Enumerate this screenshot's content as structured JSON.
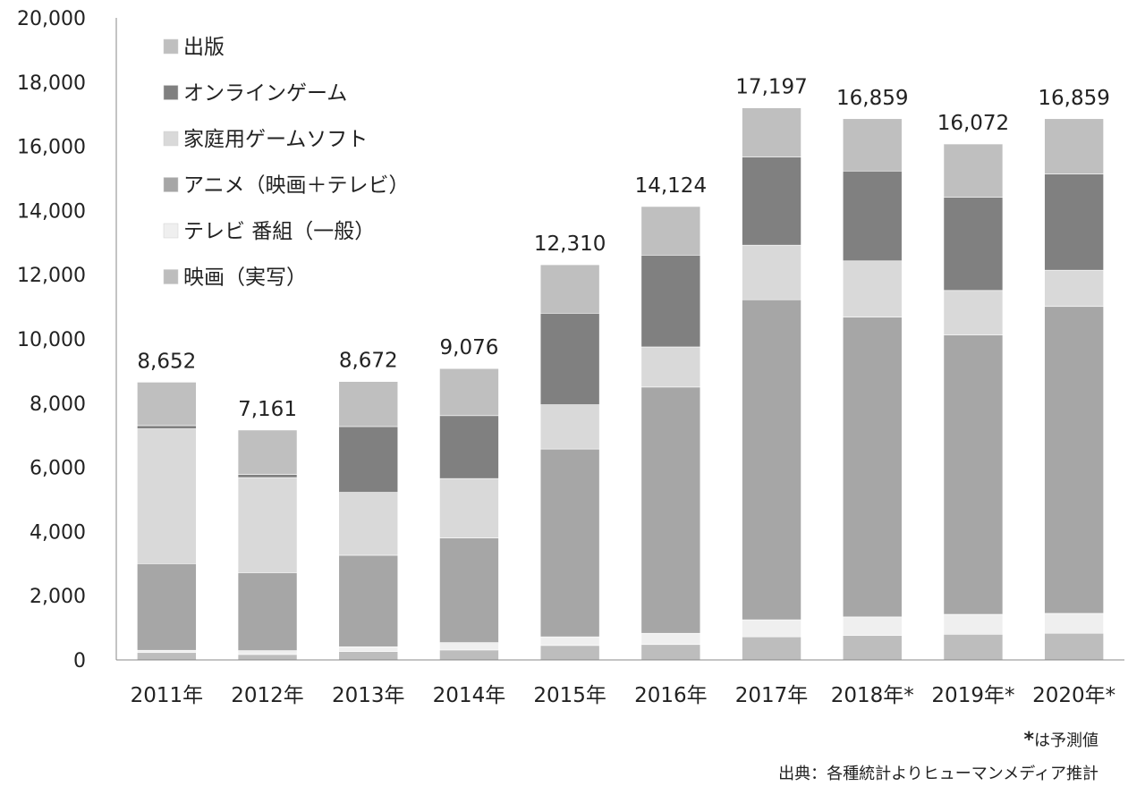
{
  "chart_data": {
    "type": "bar",
    "stacked": true,
    "categories": [
      "2011年",
      "2012年",
      "2013年",
      "2014年",
      "2015年",
      "2016年",
      "2017年",
      "2018年*",
      "2019年*",
      "2020年*"
    ],
    "totals": [
      8652,
      7161,
      8672,
      9076,
      12310,
      14124,
      17197,
      16859,
      16072,
      16859
    ],
    "total_labels": [
      "8,652",
      "7,161",
      "8,672",
      "9,076",
      "12,310",
      "14,124",
      "17,197",
      "16,859",
      "16,072",
      "16,859"
    ],
    "series": [
      {
        "name": "映画（実写）",
        "color": "#bdbdbd",
        "values": [
          230,
          170,
          260,
          310,
          450,
          480,
          720,
          760,
          800,
          830
        ]
      },
      {
        "name": "テレビ 番組（一般）",
        "color": "#efefef",
        "values": [
          70,
          120,
          150,
          230,
          270,
          350,
          530,
          580,
          620,
          620
        ]
      },
      {
        "name": "アニメ（映画＋テレビ）",
        "color": "#a6a6a6",
        "values": [
          2700,
          2430,
          2850,
          3260,
          5850,
          7670,
          9970,
          9340,
          8700,
          9560
        ]
      },
      {
        "name": "家庭用ゲームソフト",
        "color": "#d9d9d9",
        "values": [
          4200,
          2960,
          1960,
          1850,
          1380,
          1250,
          1700,
          1750,
          1390,
          1130
        ]
      },
      {
        "name": "オンラインゲーム",
        "color": "#808080",
        "values": [
          100,
          100,
          2050,
          1960,
          2850,
          2860,
          2750,
          2800,
          2900,
          3000
        ]
      },
      {
        "name": "出版",
        "color": "#bfbfbf",
        "values": [
          1352,
          1381,
          1402,
          1466,
          1510,
          1514,
          1527,
          1629,
          1662,
          1719
        ]
      }
    ],
    "legend_order": [
      "出版",
      "オンラインゲーム",
      "家庭用ゲームソフト",
      "アニメ（映画＋テレビ）",
      "テレビ 番組（一般）",
      "映画（実写）"
    ],
    "legend_position": "top-left",
    "ylim": [
      0,
      20000
    ],
    "yticks": [
      0,
      2000,
      4000,
      6000,
      8000,
      10000,
      12000,
      14000,
      16000,
      18000,
      20000
    ],
    "ytick_labels": [
      "0",
      "2,000",
      "4,000",
      "6,000",
      "8,000",
      "10,000",
      "12,000",
      "14,000",
      "16,000",
      "18,000",
      "20,000"
    ],
    "grid": false,
    "xlabel": "",
    "ylabel": "",
    "title": ""
  },
  "notes": {
    "forecast_marker": "*",
    "forecast_text": "は予測値",
    "source": "出典：各種統計よりヒューマンメディア推計"
  }
}
